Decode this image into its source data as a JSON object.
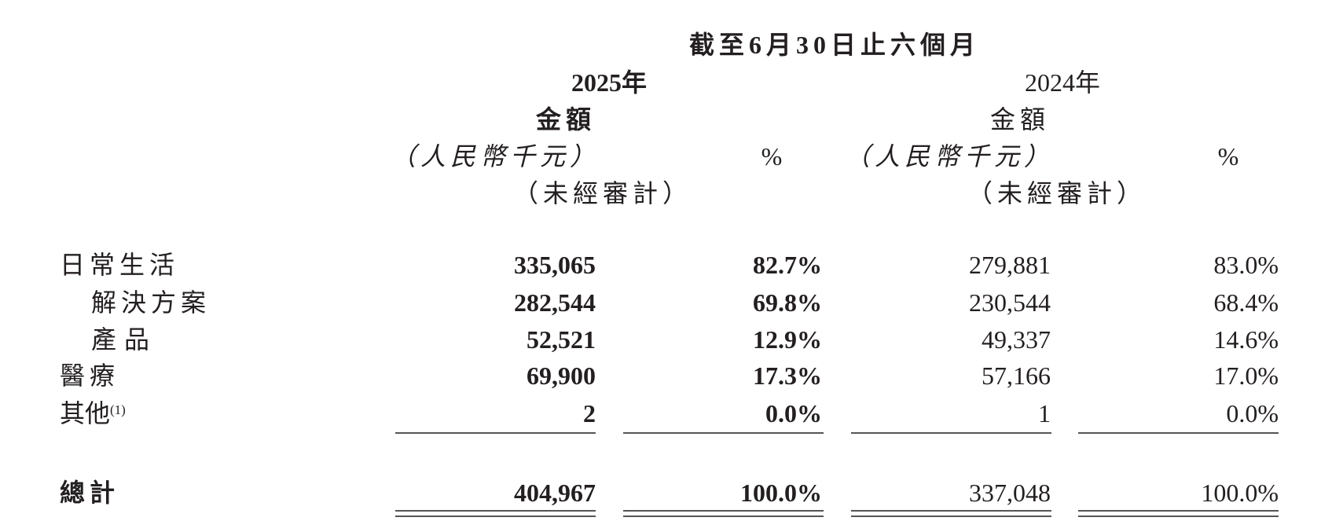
{
  "header": {
    "period": "截至6月30日止六個月",
    "years": [
      {
        "year": "2025年",
        "amount_label": "金額",
        "unit": "（人民幣千元）",
        "audit": "（未經審計）",
        "pct_label": "%"
      },
      {
        "year": "2024年",
        "amount_label": "金額",
        "unit": "（人民幣千元）",
        "audit": "（未經審計）",
        "pct_label": "%"
      }
    ]
  },
  "rows": [
    {
      "label": "日常生活",
      "note": "",
      "v2025": "335,065",
      "p2025": "82.7%",
      "v2024": "279,881",
      "p2024": "83.0%"
    },
    {
      "label": "解決方案",
      "note": "",
      "v2025": "282,544",
      "p2025": "69.8%",
      "v2024": "230,544",
      "p2024": "68.4%"
    },
    {
      "label": "產品",
      "note": "",
      "v2025": "52,521",
      "p2025": "12.9%",
      "v2024": "49,337",
      "p2024": "14.6%"
    },
    {
      "label": "醫療",
      "note": "",
      "v2025": "69,900",
      "p2025": "17.3%",
      "v2024": "57,166",
      "p2024": "17.0%"
    },
    {
      "label": "其他",
      "note": "(1)",
      "v2025": "2",
      "p2025": "0.0%",
      "v2024": "1",
      "p2024": "0.0%"
    }
  ],
  "total": {
    "label": "總計",
    "v2025": "404,967",
    "p2025": "100.0%",
    "v2024": "337,048",
    "p2024": "100.0%"
  }
}
